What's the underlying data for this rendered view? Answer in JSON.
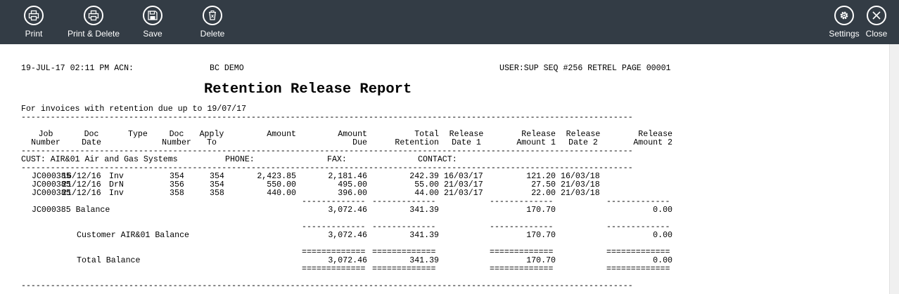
{
  "toolbar": {
    "print": {
      "label": "Print",
      "icon": "printer-icon"
    },
    "print_delete": {
      "label": "Print & Delete",
      "icon": "printer-icon"
    },
    "save": {
      "label": "Save",
      "icon": "floppy-disk-icon"
    },
    "delete": {
      "label": "Delete",
      "icon": "trash-icon"
    },
    "settings": {
      "label": "Settings",
      "icon": "gear-icon"
    },
    "close": {
      "label": "Close",
      "icon": "close-icon"
    }
  },
  "report": {
    "header_left": "19-JUL-17 02:11 PM ACN:",
    "company": "BC DEMO",
    "header_right": "USER:SUP SEQ #256 RETREL PAGE 00001",
    "title": "Retention Release Report",
    "subtitle": "For invoices with retention due up to 19/07/17",
    "separator": "-----------------------------------------------------------------------------------------------------------------------------",
    "short_dash": "-------------",
    "short_eq": "=============",
    "columns": [
      {
        "l1": "Job",
        "l2": "Number"
      },
      {
        "l1": "Doc",
        "l2": "Date"
      },
      {
        "l1": "Type",
        "l2": ""
      },
      {
        "l1": "Doc",
        "l2": "Number"
      },
      {
        "l1": "Apply",
        "l2": "To"
      },
      {
        "l1": "Amount",
        "l2": ""
      },
      {
        "l1": "Amount",
        "l2": "Due"
      },
      {
        "l1": "Total",
        "l2": "Retention"
      },
      {
        "l1": "Release",
        "l2": "Date 1"
      },
      {
        "l1": "Release",
        "l2": "Amount 1"
      },
      {
        "l1": "Release",
        "l2": "Date 2"
      },
      {
        "l1": "Release",
        "l2": "Amount 2"
      }
    ],
    "customer_line": {
      "cust": "CUST: AIR&01 Air and Gas Systems",
      "phone": "PHONE:",
      "fax": "FAX:",
      "contact": "CONTACT:"
    },
    "rows": [
      {
        "job": "JC000385",
        "date": "16/12/16",
        "type": "Inv",
        "doc": "354",
        "apply": "354",
        "amount": "2,423.85",
        "due": "2,181.46",
        "ret": "242.39",
        "d1": "16/03/17",
        "a1": "121.20",
        "d2": "16/03/18"
      },
      {
        "job": "JC000385",
        "date": "21/12/16",
        "type": "DrN",
        "doc": "356",
        "apply": "354",
        "amount": "550.00",
        "due": "495.00",
        "ret": "55.00",
        "d1": "21/03/17",
        "a1": "27.50",
        "d2": "21/03/18"
      },
      {
        "job": "JC000385",
        "date": "21/12/16",
        "type": "Inv",
        "doc": "358",
        "apply": "358",
        "amount": "440.00",
        "due": "396.00",
        "ret": "44.00",
        "d1": "21/03/17",
        "a1": "22.00",
        "d2": "21/03/18"
      }
    ],
    "job_balance": {
      "label": "JC000385 Balance",
      "due": "3,072.46",
      "ret": "341.39",
      "a1": "170.70",
      "a2": "0.00"
    },
    "customer_balance": {
      "label": "Customer AIR&01 Balance",
      "due": "3,072.46",
      "ret": "341.39",
      "a1": "170.70",
      "a2": "0.00"
    },
    "total_balance": {
      "label": "Total Balance",
      "due": "3,072.46",
      "ret": "341.39",
      "a1": "170.70",
      "a2": "0.00"
    }
  }
}
